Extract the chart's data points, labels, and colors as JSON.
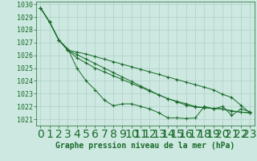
{
  "background_color": "#cce8e0",
  "grid_color": "#b0d0c8",
  "line_color": "#1a6b2a",
  "marker_color": "#1a6b2a",
  "xlabel": "Graphe pression niveau de la mer (hPa)",
  "xlabel_fontsize": 7,
  "tick_fontsize": 6,
  "xlim": [
    -0.5,
    23.5
  ],
  "ylim": [
    1020.5,
    1030.2
  ],
  "yticks": [
    1021,
    1022,
    1023,
    1024,
    1025,
    1026,
    1027,
    1028,
    1029,
    1030
  ],
  "xticks": [
    0,
    1,
    2,
    3,
    4,
    5,
    6,
    7,
    8,
    9,
    10,
    11,
    12,
    13,
    14,
    15,
    16,
    17,
    18,
    19,
    20,
    21,
    22,
    23
  ],
  "series": [
    [
      1029.7,
      1028.6,
      1027.2,
      1026.5,
      1025.0,
      1024.0,
      1023.3,
      1022.5,
      1022.05,
      1022.2,
      1022.2,
      1022.0,
      1021.8,
      1021.5,
      1021.1,
      1021.1,
      1021.05,
      1021.1,
      1022.0,
      1021.8,
      1022.0,
      1021.3,
      1021.8,
      1021.6
    ],
    [
      1029.7,
      1028.6,
      1027.2,
      1026.4,
      1025.8,
      1025.4,
      1025.0,
      1024.7,
      1024.4,
      1024.1,
      1023.8,
      1023.5,
      1023.2,
      1022.9,
      1022.6,
      1022.35,
      1022.1,
      1021.95,
      1021.9,
      1021.85,
      1021.8,
      1021.65,
      1021.55,
      1021.5
    ],
    [
      1029.7,
      1028.6,
      1027.2,
      1026.4,
      1026.05,
      1025.7,
      1025.35,
      1025.0,
      1024.65,
      1024.3,
      1023.95,
      1023.6,
      1023.25,
      1022.9,
      1022.6,
      1022.4,
      1022.2,
      1022.0,
      1021.9,
      1021.85,
      1021.8,
      1021.65,
      1021.55,
      1021.5
    ],
    [
      1029.7,
      1028.6,
      1027.2,
      1026.4,
      1026.25,
      1026.1,
      1025.9,
      1025.7,
      1025.5,
      1025.3,
      1025.1,
      1024.9,
      1024.7,
      1024.5,
      1024.3,
      1024.1,
      1023.9,
      1023.7,
      1023.5,
      1023.3,
      1022.95,
      1022.7,
      1022.1,
      1021.5
    ]
  ]
}
